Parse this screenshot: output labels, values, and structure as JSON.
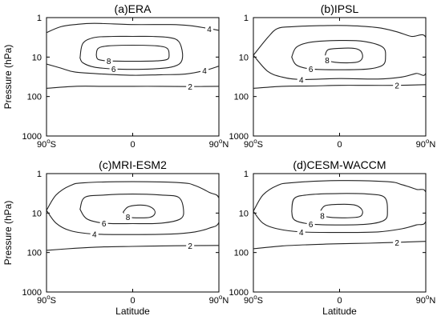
{
  "chart_data": [
    {
      "type": "contour",
      "title": "(a)ERA",
      "ylabel": "Pressure (hPa)",
      "xlabel": "",
      "y_scale": "log",
      "y_reversed": true,
      "ylim": [
        1000,
        1
      ],
      "xlim": [
        -90,
        90
      ],
      "yticks": [
        "1",
        "10",
        "100",
        "1000"
      ],
      "xticks": [
        "90°S",
        "0",
        "90°N"
      ],
      "contour_levels": [
        {
          "level": 2,
          "label": "2",
          "points": [
            [
              -90,
              62
            ],
            [
              -60,
              55
            ],
            [
              -30,
              55
            ],
            [
              0,
              55
            ],
            [
              30,
              55
            ],
            [
              60,
              56
            ],
            [
              90,
              55
            ]
          ]
        },
        {
          "level": 4,
          "label": "4",
          "points": [
            [
              -90,
              2.4
            ],
            [
              -75,
              1.7
            ],
            [
              -60,
              1.5
            ],
            [
              -40,
              1.4
            ],
            [
              0,
              1.5
            ],
            [
              40,
              1.5
            ],
            [
              60,
              1.6
            ],
            [
              80,
              1.9
            ],
            [
              90,
              2.1
            ]
          ],
          "closed": false
        },
        {
          "level": 4,
          "label": "4",
          "points": [
            [
              -90,
              15
            ],
            [
              -75,
              19
            ],
            [
              -60,
              24
            ],
            [
              -30,
              27
            ],
            [
              0,
              29
            ],
            [
              30,
              28
            ],
            [
              55,
              27
            ],
            [
              75,
              22
            ],
            [
              90,
              17
            ]
          ]
        },
        {
          "level": 6,
          "label": "6",
          "points": [
            [
              -55,
              10.5
            ],
            [
              -52,
              4.5
            ],
            [
              -40,
              3.2
            ],
            [
              -20,
              3.0
            ],
            [
              0,
              3.0
            ],
            [
              20,
              3.0
            ],
            [
              38,
              3.2
            ],
            [
              48,
              4.0
            ],
            [
              52,
              8
            ],
            [
              50,
              14
            ],
            [
              40,
              18
            ],
            [
              20,
              20
            ],
            [
              0,
              20.5
            ],
            [
              -20,
              20
            ],
            [
              -40,
              18
            ],
            [
              -52,
              14
            ],
            [
              -55,
              10.5
            ]
          ],
          "closed": true
        },
        {
          "level": 8,
          "label": "8",
          "points": [
            [
              -38,
              8.8
            ],
            [
              -36,
              6.0
            ],
            [
              -25,
              5.2
            ],
            [
              0,
              5.0
            ],
            [
              25,
              5.2
            ],
            [
              36,
              6.0
            ],
            [
              38,
              8.8
            ],
            [
              36,
              11.5
            ],
            [
              25,
              12.5
            ],
            [
              0,
              12.8
            ],
            [
              -25,
              12.5
            ],
            [
              -36,
              11.5
            ],
            [
              -38,
              8.8
            ]
          ],
          "closed": true
        }
      ]
    },
    {
      "type": "contour",
      "title": "(b)IPSL",
      "ylabel": "",
      "xlabel": "",
      "y_scale": "log",
      "y_reversed": true,
      "ylim": [
        1000,
        1
      ],
      "xlim": [
        -90,
        90
      ],
      "yticks": [
        "1",
        "10",
        "100",
        "1000"
      ],
      "xticks": [
        "90°S",
        "0",
        "90°N"
      ],
      "contour_levels": [
        {
          "level": 2,
          "label": "2",
          "points": [
            [
              -90,
              62
            ],
            [
              -60,
              55
            ],
            [
              -30,
              54
            ],
            [
              0,
              52
            ],
            [
              30,
              52
            ],
            [
              60,
              52
            ],
            [
              90,
              50
            ]
          ]
        },
        {
          "level": 4,
          "label": "4",
          "points": [
            [
              -90,
              9.0
            ],
            [
              -75,
              3.2
            ],
            [
              -65,
              1.9
            ],
            [
              -50,
              1.7
            ],
            [
              -20,
              1.6
            ],
            [
              10,
              1.6
            ],
            [
              40,
              1.8
            ],
            [
              60,
              2.3
            ],
            [
              75,
              3.0
            ],
            [
              90,
              3.2
            ],
            [
              90,
              25
            ],
            [
              80,
              26
            ],
            [
              65,
              32
            ],
            [
              40,
              36
            ],
            [
              0,
              35
            ],
            [
              -40,
              37
            ],
            [
              -60,
              32
            ],
            [
              -75,
              23
            ],
            [
              -90,
              9.0
            ]
          ],
          "closed": true
        },
        {
          "level": 6,
          "label": "6",
          "points": [
            [
              -50,
              10
            ],
            [
              -45,
              5.6
            ],
            [
              -30,
              4.2
            ],
            [
              0,
              3.8
            ],
            [
              25,
              4.0
            ],
            [
              45,
              5.6
            ],
            [
              48,
              10
            ],
            [
              45,
              16
            ],
            [
              30,
              20
            ],
            [
              0,
              21
            ],
            [
              -30,
              20
            ],
            [
              -45,
              16
            ],
            [
              -50,
              10
            ]
          ],
          "closed": true
        },
        {
          "level": 8,
          "label": "8",
          "points": [
            [
              -15,
              9
            ],
            [
              -12,
              6.5
            ],
            [
              0,
              6.0
            ],
            [
              15,
              6.0
            ],
            [
              22,
              7
            ],
            [
              24,
              10
            ],
            [
              20,
              13
            ],
            [
              10,
              14
            ],
            [
              -5,
              13.5
            ],
            [
              -13,
              12
            ],
            [
              -15,
              9
            ]
          ],
          "closed": true
        }
      ]
    },
    {
      "type": "contour",
      "title": "(c)MRI-ESM2",
      "ylabel": "Pressure (hPa)",
      "xlabel": "Latitude",
      "y_scale": "log",
      "y_reversed": true,
      "ylim": [
        1000,
        1
      ],
      "xlim": [
        -90,
        90
      ],
      "yticks": [
        "1",
        "10",
        "100",
        "1000"
      ],
      "xticks": [
        "90°S",
        "0",
        "90°N"
      ],
      "contour_levels": [
        {
          "level": 2,
          "label": "2",
          "points": [
            [
              -90,
              88
            ],
            [
              -60,
              78
            ],
            [
              -30,
              72
            ],
            [
              0,
              70
            ],
            [
              30,
              68
            ],
            [
              60,
              67
            ],
            [
              90,
              66
            ]
          ]
        },
        {
          "level": 4,
          "label": "4",
          "points": [
            [
              -90,
              8.5
            ],
            [
              -80,
              3.5
            ],
            [
              -65,
              2.0
            ],
            [
              -50,
              1.7
            ],
            [
              0,
              1.6
            ],
            [
              50,
              1.7
            ],
            [
              65,
              2.0
            ],
            [
              80,
              3.0
            ],
            [
              90,
              4.2
            ],
            [
              90,
              17
            ],
            [
              80,
              24
            ],
            [
              65,
              30
            ],
            [
              40,
              34
            ],
            [
              0,
              35
            ],
            [
              -40,
              34
            ],
            [
              -65,
              28
            ],
            [
              -80,
              18
            ],
            [
              -90,
              8.5
            ]
          ],
          "closed": true
        },
        {
          "level": 6,
          "label": "6",
          "points": [
            [
              -55,
              8
            ],
            [
              -50,
              4.0
            ],
            [
              -30,
              3.5
            ],
            [
              0,
              3.3
            ],
            [
              30,
              3.5
            ],
            [
              48,
              4.0
            ],
            [
              53,
              8
            ],
            [
              50,
              14
            ],
            [
              30,
              18
            ],
            [
              0,
              18.5
            ],
            [
              -30,
              18
            ],
            [
              -48,
              14
            ],
            [
              -55,
              8
            ]
          ],
          "closed": true
        },
        {
          "level": 8,
          "label": "8",
          "points": [
            [
              -10,
              9.5
            ],
            [
              -5,
              7.0
            ],
            [
              5,
              6.3
            ],
            [
              15,
              6.5
            ],
            [
              22,
              8.0
            ],
            [
              23,
              10.5
            ],
            [
              18,
              12.8
            ],
            [
              5,
              13.2
            ],
            [
              -5,
              12.5
            ],
            [
              -10,
              9.5
            ]
          ],
          "closed": true
        }
      ]
    },
    {
      "type": "contour",
      "title": "(d)CESM-WACCM",
      "ylabel": "",
      "xlabel": "Latitude",
      "y_scale": "log",
      "y_reversed": true,
      "ylim": [
        1000,
        1
      ],
      "xlim": [
        -90,
        90
      ],
      "yticks": [
        "1",
        "10",
        "100",
        "1000"
      ],
      "xticks": [
        "90°S",
        "0",
        "90°N"
      ],
      "contour_levels": [
        {
          "level": 2,
          "label": "2",
          "points": [
            [
              -90,
              80
            ],
            [
              -60,
              68
            ],
            [
              -30,
              63
            ],
            [
              0,
              60
            ],
            [
              30,
              58
            ],
            [
              60,
              55
            ],
            [
              90,
              52
            ]
          ]
        },
        {
          "level": 4,
          "label": "4",
          "points": [
            [
              -90,
              9.0
            ],
            [
              -80,
              3.5
            ],
            [
              -65,
              2.0
            ],
            [
              -50,
              1.7
            ],
            [
              0,
              1.5
            ],
            [
              50,
              1.6
            ],
            [
              65,
              1.9
            ],
            [
              80,
              2.5
            ],
            [
              90,
              3.0
            ],
            [
              90,
              16
            ],
            [
              80,
              20
            ],
            [
              65,
              25
            ],
            [
              40,
              30
            ],
            [
              0,
              31
            ],
            [
              -40,
              30
            ],
            [
              -65,
              25
            ],
            [
              -80,
              18
            ],
            [
              -90,
              9.0
            ]
          ],
          "closed": true
        },
        {
          "level": 6,
          "label": "6",
          "points": [
            [
              -50,
              9
            ],
            [
              -47,
              4.2
            ],
            [
              -30,
              3.4
            ],
            [
              0,
              3.2
            ],
            [
              30,
              3.3
            ],
            [
              47,
              4.0
            ],
            [
              50,
              9
            ],
            [
              47,
              15
            ],
            [
              30,
              19
            ],
            [
              0,
              20
            ],
            [
              -30,
              19
            ],
            [
              -47,
              15
            ],
            [
              -50,
              9
            ]
          ],
          "closed": true
        },
        {
          "level": 8,
          "label": "8",
          "points": [
            [
              -20,
              9
            ],
            [
              -15,
              6.5
            ],
            [
              0,
              6.0
            ],
            [
              15,
              6.2
            ],
            [
              22,
              7.5
            ],
            [
              24,
              10
            ],
            [
              20,
              12.5
            ],
            [
              5,
              13.2
            ],
            [
              -10,
              12.8
            ],
            [
              -18,
              11.5
            ],
            [
              -20,
              9
            ]
          ],
          "closed": true
        }
      ]
    }
  ]
}
